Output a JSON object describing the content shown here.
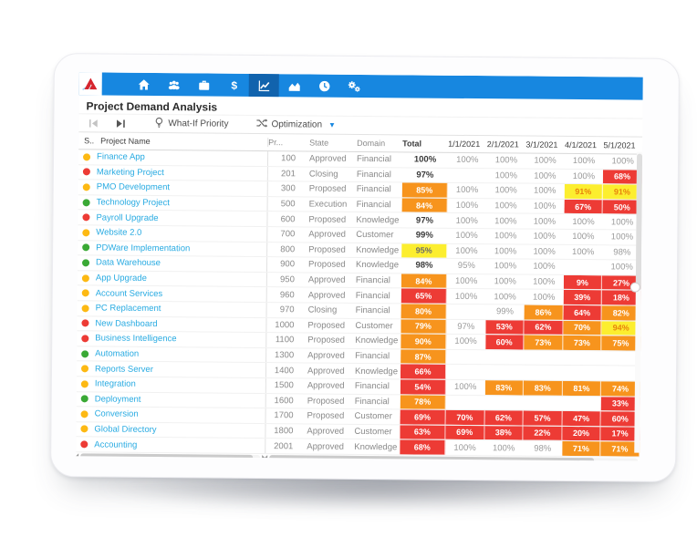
{
  "app_title": "Project Demand Analysis",
  "nav": {
    "icons": [
      "home",
      "users",
      "briefcase",
      "dollar",
      "line-chart",
      "area-chart",
      "clock",
      "gears"
    ],
    "active_icon": "line-chart"
  },
  "toolbar": {
    "prev_label": "previous",
    "next_label": "next",
    "whatif_label": "What-If Priority",
    "optimization_label": "Optimization"
  },
  "colors": {
    "navbar_blue": "#1787e0",
    "active_tile_blue": "#1163ad",
    "alert_red": "#ed3b35",
    "warn_orange": "#f7941d",
    "caution_yellow": "#fcee2f",
    "link_blue": "#29abe2",
    "dot_yellow": "#fdb913",
    "dot_green": "#3aa935",
    "dot_red": "#ed3b35"
  },
  "table": {
    "columns": [
      "S..",
      "Project Name",
      "Pr...",
      "State",
      "Domain",
      "Total",
      "1/1/2021",
      "2/1/2021",
      "3/1/2021",
      "4/1/2021",
      "5/1/2021"
    ],
    "rows": [
      {
        "dot": "yellow",
        "name": "Finance App",
        "priority": "100",
        "state": "Approved",
        "domain": "Financial",
        "total": {
          "v": "100%",
          "c": "plain"
        },
        "months": [
          {
            "v": "100%",
            "c": "plain"
          },
          {
            "v": "100%",
            "c": "plain"
          },
          {
            "v": "100%",
            "c": "plain"
          },
          {
            "v": "100%",
            "c": "plain"
          },
          {
            "v": "100%",
            "c": "plain"
          }
        ]
      },
      {
        "dot": "red",
        "name": "Marketing Project",
        "priority": "201",
        "state": "Closing",
        "domain": "Financial",
        "total": {
          "v": "97%",
          "c": "plain"
        },
        "months": [
          {
            "v": "",
            "c": "empty"
          },
          {
            "v": "100%",
            "c": "plain"
          },
          {
            "v": "100%",
            "c": "plain"
          },
          {
            "v": "100%",
            "c": "plain"
          },
          {
            "v": "68%",
            "c": "red"
          }
        ]
      },
      {
        "dot": "yellow",
        "name": "PMO Development",
        "priority": "300",
        "state": "Proposed",
        "domain": "Financial",
        "total": {
          "v": "85%",
          "c": "orange"
        },
        "months": [
          {
            "v": "100%",
            "c": "plain"
          },
          {
            "v": "100%",
            "c": "plain"
          },
          {
            "v": "100%",
            "c": "plain"
          },
          {
            "v": "91%",
            "c": "yellow"
          },
          {
            "v": "91%",
            "c": "yellow"
          }
        ]
      },
      {
        "dot": "green",
        "name": "Technology Project",
        "priority": "500",
        "state": "Execution",
        "domain": "Financial",
        "total": {
          "v": "84%",
          "c": "orange"
        },
        "months": [
          {
            "v": "100%",
            "c": "plain"
          },
          {
            "v": "100%",
            "c": "plain"
          },
          {
            "v": "100%",
            "c": "plain"
          },
          {
            "v": "67%",
            "c": "red"
          },
          {
            "v": "50%",
            "c": "red"
          }
        ]
      },
      {
        "dot": "red",
        "name": "Payroll Upgrade",
        "priority": "600",
        "state": "Proposed",
        "domain": "Knowledge",
        "total": {
          "v": "97%",
          "c": "plain"
        },
        "months": [
          {
            "v": "100%",
            "c": "plain"
          },
          {
            "v": "100%",
            "c": "plain"
          },
          {
            "v": "100%",
            "c": "plain"
          },
          {
            "v": "100%",
            "c": "plain"
          },
          {
            "v": "100%",
            "c": "plain"
          }
        ]
      },
      {
        "dot": "yellow",
        "name": "Website 2.0",
        "priority": "700",
        "state": "Approved",
        "domain": "Customer",
        "total": {
          "v": "99%",
          "c": "plain"
        },
        "months": [
          {
            "v": "100%",
            "c": "plain"
          },
          {
            "v": "100%",
            "c": "plain"
          },
          {
            "v": "100%",
            "c": "plain"
          },
          {
            "v": "100%",
            "c": "plain"
          },
          {
            "v": "100%",
            "c": "plain"
          }
        ]
      },
      {
        "dot": "green",
        "name": "PDWare Implementation",
        "priority": "800",
        "state": "Proposed",
        "domain": "Knowledge",
        "total": {
          "v": "95%",
          "c": "yellow"
        },
        "months": [
          {
            "v": "100%",
            "c": "plain"
          },
          {
            "v": "100%",
            "c": "plain"
          },
          {
            "v": "100%",
            "c": "plain"
          },
          {
            "v": "100%",
            "c": "plain"
          },
          {
            "v": "98%",
            "c": "plain"
          }
        ]
      },
      {
        "dot": "green",
        "name": "Data Warehouse",
        "priority": "900",
        "state": "Proposed",
        "domain": "Knowledge",
        "total": {
          "v": "98%",
          "c": "plain"
        },
        "months": [
          {
            "v": "95%",
            "c": "plain"
          },
          {
            "v": "100%",
            "c": "plain"
          },
          {
            "v": "100%",
            "c": "plain"
          },
          {
            "v": "",
            "c": "empty"
          },
          {
            "v": "100%",
            "c": "plain"
          }
        ]
      },
      {
        "dot": "yellow",
        "name": "App Upgrade",
        "priority": "950",
        "state": "Approved",
        "domain": "Financial",
        "total": {
          "v": "84%",
          "c": "orange"
        },
        "months": [
          {
            "v": "100%",
            "c": "plain"
          },
          {
            "v": "100%",
            "c": "plain"
          },
          {
            "v": "100%",
            "c": "plain"
          },
          {
            "v": "9%",
            "c": "red"
          },
          {
            "v": "27%",
            "c": "red"
          }
        ]
      },
      {
        "dot": "yellow",
        "name": "Account Services",
        "priority": "960",
        "state": "Approved",
        "domain": "Financial",
        "total": {
          "v": "65%",
          "c": "red"
        },
        "months": [
          {
            "v": "100%",
            "c": "plain"
          },
          {
            "v": "100%",
            "c": "plain"
          },
          {
            "v": "100%",
            "c": "plain"
          },
          {
            "v": "39%",
            "c": "red"
          },
          {
            "v": "18%",
            "c": "red"
          }
        ]
      },
      {
        "dot": "yellow",
        "name": "PC Replacement",
        "priority": "970",
        "state": "Closing",
        "domain": "Financial",
        "total": {
          "v": "80%",
          "c": "orange"
        },
        "months": [
          {
            "v": "",
            "c": "empty"
          },
          {
            "v": "99%",
            "c": "plain"
          },
          {
            "v": "86%",
            "c": "orange"
          },
          {
            "v": "64%",
            "c": "red"
          },
          {
            "v": "82%",
            "c": "orange"
          }
        ]
      },
      {
        "dot": "red",
        "name": "New Dashboard",
        "priority": "1000",
        "state": "Proposed",
        "domain": "Customer",
        "total": {
          "v": "79%",
          "c": "orange"
        },
        "months": [
          {
            "v": "97%",
            "c": "plain"
          },
          {
            "v": "53%",
            "c": "red"
          },
          {
            "v": "62%",
            "c": "red"
          },
          {
            "v": "70%",
            "c": "orange"
          },
          {
            "v": "94%",
            "c": "yellow"
          }
        ]
      },
      {
        "dot": "red",
        "name": "Business Intelligence",
        "priority": "1100",
        "state": "Proposed",
        "domain": "Knowledge",
        "total": {
          "v": "90%",
          "c": "orange"
        },
        "months": [
          {
            "v": "100%",
            "c": "plain"
          },
          {
            "v": "60%",
            "c": "red"
          },
          {
            "v": "73%",
            "c": "orange"
          },
          {
            "v": "73%",
            "c": "orange"
          },
          {
            "v": "75%",
            "c": "orange"
          }
        ]
      },
      {
        "dot": "green",
        "name": "Automation",
        "priority": "1300",
        "state": "Approved",
        "domain": "Financial",
        "total": {
          "v": "87%",
          "c": "orange"
        },
        "months": [
          {
            "v": "",
            "c": "empty"
          },
          {
            "v": "",
            "c": "empty"
          },
          {
            "v": "",
            "c": "empty"
          },
          {
            "v": "",
            "c": "empty"
          },
          {
            "v": "",
            "c": "empty"
          }
        ]
      },
      {
        "dot": "yellow",
        "name": "Reports Server",
        "priority": "1400",
        "state": "Approved",
        "domain": "Knowledge",
        "total": {
          "v": "66%",
          "c": "red"
        },
        "months": [
          {
            "v": "",
            "c": "empty"
          },
          {
            "v": "",
            "c": "empty"
          },
          {
            "v": "",
            "c": "empty"
          },
          {
            "v": "",
            "c": "empty"
          },
          {
            "v": "",
            "c": "empty"
          }
        ]
      },
      {
        "dot": "yellow",
        "name": "Integration",
        "priority": "1500",
        "state": "Approved",
        "domain": "Financial",
        "total": {
          "v": "54%",
          "c": "red"
        },
        "months": [
          {
            "v": "100%",
            "c": "plain"
          },
          {
            "v": "83%",
            "c": "orange"
          },
          {
            "v": "83%",
            "c": "orange"
          },
          {
            "v": "81%",
            "c": "orange"
          },
          {
            "v": "74%",
            "c": "orange"
          }
        ]
      },
      {
        "dot": "green",
        "name": "Deployment",
        "priority": "1600",
        "state": "Proposed",
        "domain": "Financial",
        "total": {
          "v": "78%",
          "c": "orange"
        },
        "months": [
          {
            "v": "",
            "c": "empty"
          },
          {
            "v": "",
            "c": "empty"
          },
          {
            "v": "",
            "c": "empty"
          },
          {
            "v": "",
            "c": "empty"
          },
          {
            "v": "33%",
            "c": "red"
          }
        ]
      },
      {
        "dot": "yellow",
        "name": "Conversion",
        "priority": "1700",
        "state": "Proposed",
        "domain": "Customer",
        "total": {
          "v": "69%",
          "c": "red"
        },
        "months": [
          {
            "v": "70%",
            "c": "red"
          },
          {
            "v": "62%",
            "c": "red"
          },
          {
            "v": "57%",
            "c": "red"
          },
          {
            "v": "47%",
            "c": "red"
          },
          {
            "v": "60%",
            "c": "red"
          }
        ]
      },
      {
        "dot": "yellow",
        "name": "Global Directory",
        "priority": "1800",
        "state": "Approved",
        "domain": "Customer",
        "total": {
          "v": "63%",
          "c": "red"
        },
        "months": [
          {
            "v": "69%",
            "c": "red"
          },
          {
            "v": "38%",
            "c": "red"
          },
          {
            "v": "22%",
            "c": "red"
          },
          {
            "v": "20%",
            "c": "red"
          },
          {
            "v": "17%",
            "c": "red"
          }
        ]
      },
      {
        "dot": "red",
        "name": "Accounting",
        "priority": "2001",
        "state": "Approved",
        "domain": "Knowledge",
        "total": {
          "v": "68%",
          "c": "red"
        },
        "months": [
          {
            "v": "100%",
            "c": "plain"
          },
          {
            "v": "100%",
            "c": "plain"
          },
          {
            "v": "98%",
            "c": "plain"
          },
          {
            "v": "71%",
            "c": "orange"
          },
          {
            "v": "71%",
            "c": "orange"
          }
        ]
      }
    ]
  }
}
